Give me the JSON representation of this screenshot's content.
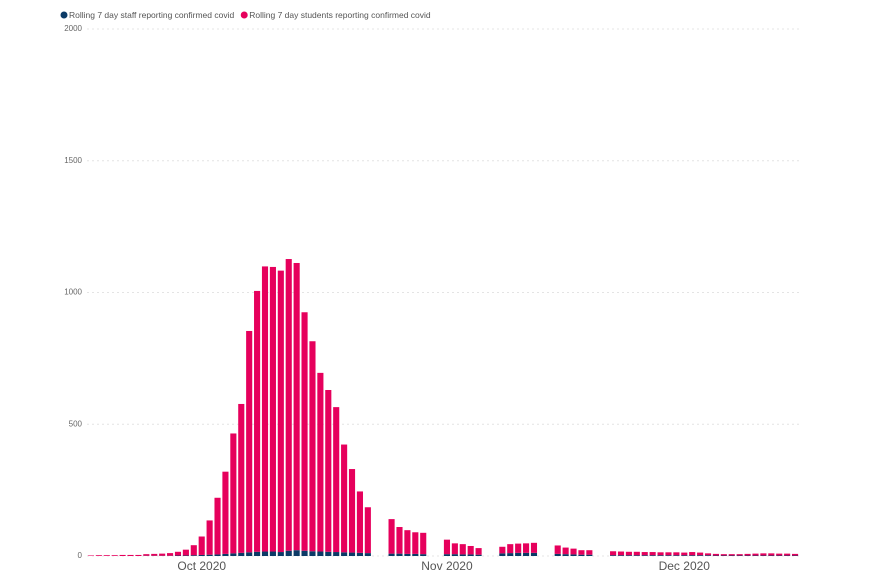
{
  "chart_data": {
    "type": "bar",
    "stacked": true,
    "grid": true,
    "legend": "top-left",
    "categories": [
      null,
      null,
      null,
      null,
      null,
      null,
      null,
      null,
      null,
      null,
      null,
      null,
      null,
      null,
      "Oct 2020",
      null,
      null,
      null,
      null,
      null,
      null,
      null,
      null,
      null,
      null,
      null,
      null,
      null,
      null,
      null,
      null,
      null,
      null,
      null,
      null,
      null,
      null,
      null,
      null,
      null,
      null,
      null,
      null,
      null,
      null,
      "Nov 2020",
      null,
      null,
      null,
      null,
      null,
      null,
      null,
      null,
      null,
      null,
      null,
      null,
      null,
      null,
      null,
      null,
      null,
      null,
      null,
      null,
      null,
      null,
      null,
      null,
      null,
      null,
      null,
      null,
      null,
      "Dec 2020",
      null,
      null,
      null,
      null,
      null,
      null,
      null,
      null,
      null,
      null,
      null,
      null,
      null,
      null
    ],
    "series": [
      {
        "name": "Rolling 7 day staff reporting confirmed covid",
        "color": "#0b3a66",
        "values": [
          0,
          0,
          0,
          0,
          0,
          0,
          0,
          1,
          1,
          1,
          1,
          2,
          2,
          3,
          4,
          5,
          6,
          8,
          10,
          12,
          14,
          16,
          17,
          17,
          15,
          20,
          22,
          20,
          18,
          17,
          16,
          15,
          14,
          13,
          12,
          11,
          null,
          null,
          9,
          9,
          8,
          8,
          7,
          null,
          null,
          7,
          7,
          6,
          6,
          5,
          null,
          null,
          10,
          11,
          12,
          12,
          12,
          null,
          null,
          8,
          7,
          6,
          5,
          5,
          null,
          null,
          3,
          3,
          3,
          3,
          3,
          3,
          3,
          3,
          3,
          3,
          3,
          3,
          3,
          2,
          2,
          2,
          2,
          2,
          2,
          2,
          2,
          2,
          2,
          2
        ]
      },
      {
        "name": "Rolling 7 day students reporting confirmed covid",
        "color": "#e6005c",
        "values": [
          2,
          3,
          3,
          3,
          4,
          4,
          4,
          6,
          7,
          8,
          10,
          14,
          22,
          38,
          70,
          130,
          215,
          312,
          455,
          565,
          840,
          990,
          1082,
          1080,
          1068,
          1107,
          1090,
          905,
          797,
          678,
          614,
          550,
          409,
          317,
          233,
          174,
          null,
          null,
          131,
          101,
          90,
          82,
          81,
          null,
          null,
          55,
          41,
          39,
          32,
          25,
          null,
          null,
          25,
          34,
          35,
          36,
          38,
          null,
          null,
          32,
          25,
          22,
          17,
          17,
          null,
          null,
          15,
          14,
          13,
          13,
          12,
          12,
          11,
          11,
          11,
          10,
          12,
          10,
          7,
          6,
          5,
          5,
          5,
          6,
          7,
          8,
          8,
          7,
          7,
          6
        ]
      }
    ],
    "ylim": [
      0,
      2000
    ],
    "yticks": [
      0,
      500,
      1000,
      1500,
      2000
    ]
  }
}
